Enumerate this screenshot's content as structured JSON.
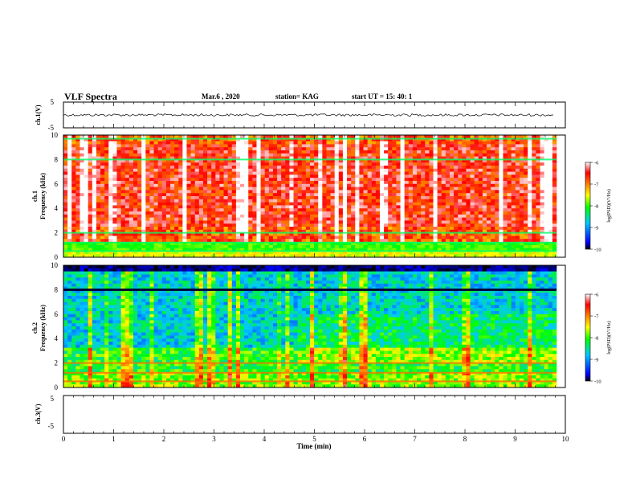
{
  "header": {
    "title": "VLF Spectra",
    "date": "Mar.6 , 2020",
    "station": "station= KAG",
    "start": "start UT = 15: 40: 1"
  },
  "chart_data": [
    {
      "type": "line",
      "panel": "ch1-waveform",
      "ylabel": "ch.1(V)",
      "ylim": [
        -5,
        5
      ],
      "yticks": [
        "5",
        "-5"
      ],
      "xlim": [
        0,
        10
      ],
      "series_desc_value": 0
    },
    {
      "type": "heatmap",
      "panel": "ch1-spectrogram",
      "ylabel": "ch.1\nFrequency (kHz)",
      "ylabel_lines": [
        "ch.1",
        "Frequency (kHz)"
      ],
      "ylim": [
        0,
        10
      ],
      "yticks": [
        "0",
        "2",
        "4",
        "6",
        "8",
        "10"
      ],
      "xlim": [
        0,
        10
      ],
      "colorbar": {
        "label": "log(PSD)(V²/Hz)",
        "range": [
          -10,
          -6
        ],
        "ticks": [
          "-6",
          "-7",
          "-8",
          "-9",
          "-10"
        ],
        "colors": [
          "#000000",
          "#0000ff",
          "#00c8ff",
          "#00ff00",
          "#ffff00",
          "#ff8000",
          "#ff0000",
          "#ffffff"
        ]
      },
      "features": {
        "dominant_level": -6.8,
        "narrowband_lines_khz": [
          8.0,
          9.7,
          2.0,
          1.2,
          0.5
        ],
        "low_level_band_khz": [
          0.6,
          1.2
        ]
      }
    },
    {
      "type": "heatmap",
      "panel": "ch2-spectrogram",
      "ylabel": "ch.2\nFrequency (kHz)",
      "ylabel_lines": [
        "ch.2",
        "Frequency (kHz)"
      ],
      "ylim": [
        0,
        10
      ],
      "yticks": [
        "0",
        "2",
        "4",
        "6",
        "8",
        "10"
      ],
      "xlim": [
        0,
        10
      ],
      "colorbar": {
        "label": "log(PSD)(V²/Hz)",
        "range": [
          -10,
          -6
        ],
        "ticks": [
          "-6",
          "-7",
          "-8",
          "-9",
          "-10"
        ],
        "colors": [
          "#000000",
          "#0000ff",
          "#00c8ff",
          "#00ff00",
          "#ffff00",
          "#ff8000",
          "#ff0000",
          "#ffffff"
        ]
      },
      "features": {
        "dominant_level": -8.7,
        "narrowband_lines_khz": [
          8.0,
          2.0,
          1.2,
          0.5
        ],
        "dark_band_khz": [
          9.6,
          10.0
        ]
      }
    },
    {
      "type": "line",
      "panel": "ch3-waveform",
      "ylabel": "ch.3(V)",
      "ylim": [
        -5,
        5
      ],
      "yticks": [
        "5",
        "-5"
      ],
      "xlim": [
        0,
        10
      ],
      "xlabel": "Time (min)",
      "xticks": [
        "0",
        "1",
        "2",
        "3",
        "4",
        "5",
        "6",
        "7",
        "8",
        "9",
        "10"
      ]
    }
  ]
}
